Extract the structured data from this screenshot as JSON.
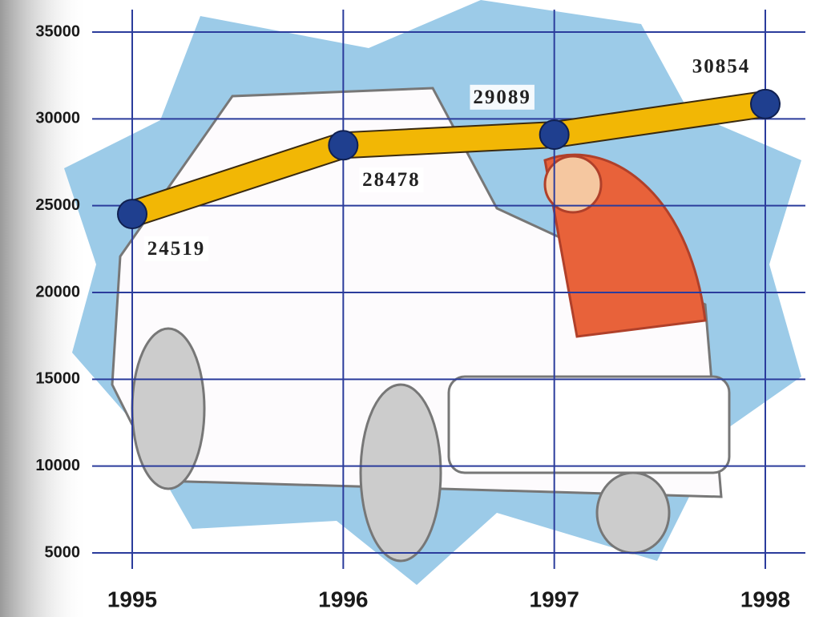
{
  "chart_data": {
    "type": "line",
    "categories": [
      "1995",
      "1996",
      "1997",
      "1998"
    ],
    "values": [
      24519,
      28478,
      29089,
      30854
    ],
    "color": "#f2b705",
    "marker_color": "#1f3f8f",
    "grid_color": "#2b3c9c",
    "ylim": [
      5000,
      35000
    ],
    "yticks": [
      5000,
      10000,
      15000,
      20000,
      25000,
      30000,
      35000
    ],
    "grid": true
  }
}
